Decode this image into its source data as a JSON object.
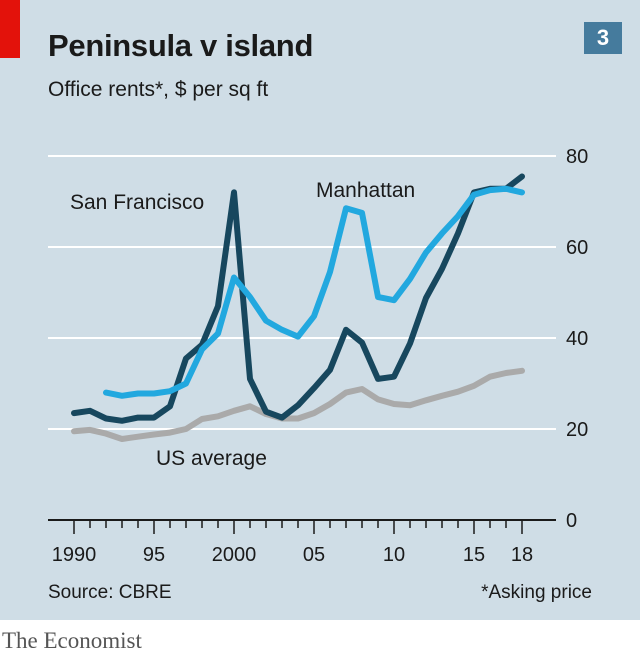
{
  "header": {
    "title": "Peninsula v island",
    "subtitle": "Office rents*, $ per sq ft",
    "chart_number": "3"
  },
  "footer": {
    "source": "Source: CBRE",
    "footnote": "*Asking price",
    "brand": "The Economist"
  },
  "colors": {
    "panel_background": "#cfdde6",
    "brand_red": "#e3120b",
    "badge": "#457b9d",
    "san_francisco": "#17475e",
    "manhattan": "#22a8df",
    "us_average": "#aaaaaa"
  },
  "chart_data": {
    "type": "line",
    "ylim": [
      0,
      80
    ],
    "yticks": [
      0,
      20,
      40,
      60,
      80
    ],
    "xlim": [
      1990,
      2018
    ],
    "xticks": [
      1990,
      1995,
      2000,
      2005,
      2010,
      2015,
      2018
    ],
    "xtick_labels": [
      "1990",
      "95",
      "2000",
      "05",
      "10",
      "15",
      "18"
    ],
    "y_axis_side": "right",
    "grid": true,
    "series": [
      {
        "name": "US average",
        "color": "#aaaaaa",
        "x": [
          1990,
          1991,
          1992,
          1993,
          1994,
          1995,
          1996,
          1997,
          1998,
          1999,
          2000,
          2001,
          2002,
          2003,
          2004,
          2005,
          2006,
          2007,
          2008,
          2009,
          2010,
          2011,
          2012,
          2013,
          2014,
          2015,
          2016,
          2017,
          2018
        ],
        "y": [
          19.5,
          19.8,
          19,
          17.8,
          18.3,
          18.8,
          19.2,
          20,
          22.2,
          22.8,
          24,
          25,
          23.3,
          22.3,
          22.3,
          23.5,
          25.5,
          28,
          28.8,
          26.5,
          25.5,
          25.2,
          26.3,
          27.3,
          28.2,
          29.5,
          31.5,
          32.3,
          32.8
        ]
      },
      {
        "name": "San Francisco",
        "color": "#17475e",
        "x": [
          1990,
          1991,
          1992,
          1993,
          1994,
          1995,
          1996,
          1997,
          1998,
          1999,
          2000,
          2001,
          2002,
          2003,
          2004,
          2005,
          2006,
          2007,
          2008,
          2009,
          2010,
          2011,
          2012,
          2013,
          2014,
          2015,
          2016,
          2017,
          2018
        ],
        "y": [
          23.5,
          24,
          22.3,
          21.8,
          22.5,
          22.5,
          25,
          35.5,
          38.5,
          47,
          72,
          31,
          23.8,
          22.5,
          25.2,
          29,
          33,
          41.8,
          39,
          31,
          31.5,
          38.8,
          48.8,
          55.2,
          63,
          72,
          72.8,
          72.8,
          75.5
        ]
      },
      {
        "name": "Manhattan",
        "color": "#22a8df",
        "x": [
          1992,
          1993,
          1994,
          1995,
          1996,
          1997,
          1998,
          1999,
          2000,
          2001,
          2002,
          2003,
          2004,
          2005,
          2006,
          2007,
          2008,
          2009,
          2010,
          2011,
          2012,
          2013,
          2014,
          2015,
          2016,
          2017,
          2018
        ],
        "y": [
          28,
          27.3,
          27.8,
          27.8,
          28.3,
          30,
          37.5,
          41,
          53.3,
          49,
          43.8,
          41.8,
          40.3,
          44.8,
          54.5,
          68.5,
          67.5,
          49,
          48.3,
          53,
          58.8,
          63,
          66.8,
          71.5,
          72.5,
          72.8,
          72
        ]
      }
    ]
  }
}
